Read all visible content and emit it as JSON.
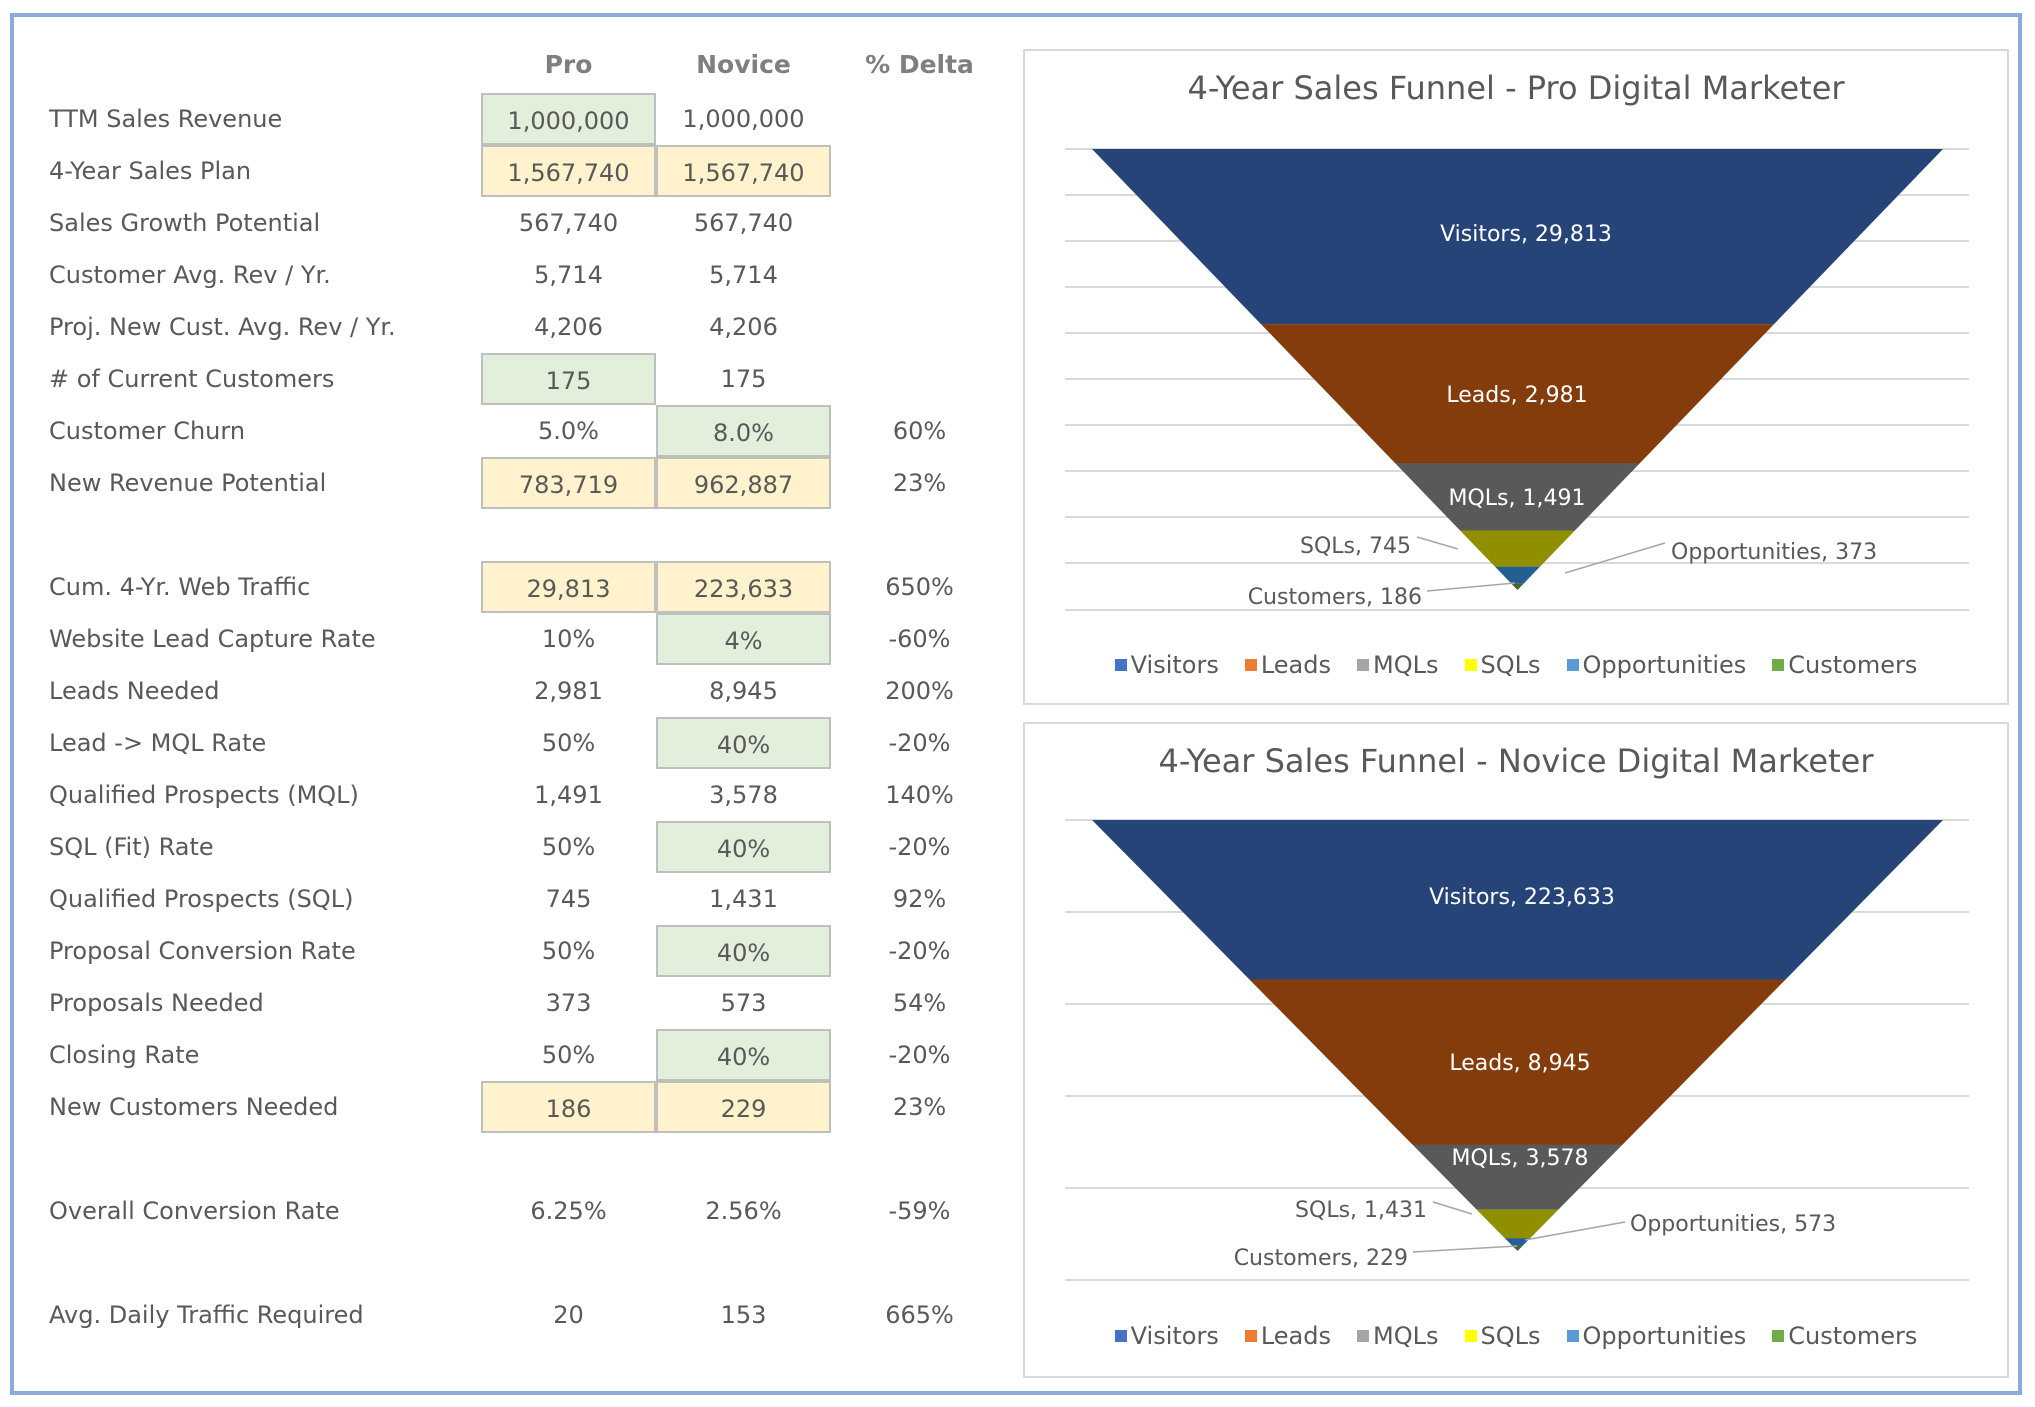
{
  "table": {
    "headers": {
      "pro": "Pro",
      "novice": "Novice",
      "delta": "% Delta"
    },
    "sections": [
      [
        {
          "label": "TTM Sales Revenue",
          "pro": "1,000,000",
          "novice": "1,000,000",
          "delta": "",
          "pro_fill": "green",
          "novice_fill": ""
        },
        {
          "label": "4-Year Sales Plan",
          "pro": "1,567,740",
          "novice": "1,567,740",
          "delta": "",
          "pro_fill": "yellow",
          "novice_fill": "yellow"
        },
        {
          "label": "Sales Growth Potential",
          "pro": "567,740",
          "novice": "567,740",
          "delta": "",
          "pro_fill": "",
          "novice_fill": ""
        },
        {
          "label": "Customer Avg. Rev / Yr.",
          "pro": "5,714",
          "novice": "5,714",
          "delta": "",
          "pro_fill": "",
          "novice_fill": ""
        },
        {
          "label": "Proj. New Cust. Avg. Rev / Yr.",
          "pro": "4,206",
          "novice": "4,206",
          "delta": "",
          "pro_fill": "",
          "novice_fill": ""
        },
        {
          "label": "# of Current Customers",
          "pro": "175",
          "novice": "175",
          "delta": "",
          "pro_fill": "green",
          "novice_fill": ""
        },
        {
          "label": "Customer Churn",
          "pro": "5.0%",
          "novice": "8.0%",
          "delta": "60%",
          "pro_fill": "",
          "novice_fill": "green"
        },
        {
          "label": "New Revenue Potential",
          "pro": "783,719",
          "novice": "962,887",
          "delta": "23%",
          "pro_fill": "yellow",
          "novice_fill": "yellow"
        }
      ],
      [
        {
          "label": "Cum. 4-Yr. Web Traffic",
          "pro": "29,813",
          "novice": "223,633",
          "delta": "650%",
          "pro_fill": "yellow",
          "novice_fill": "yellow"
        },
        {
          "label": "Website Lead Capture Rate",
          "pro": "10%",
          "novice": "4%",
          "delta": "-60%",
          "pro_fill": "",
          "novice_fill": "green"
        },
        {
          "label": "Leads Needed",
          "pro": "2,981",
          "novice": "8,945",
          "delta": "200%",
          "pro_fill": "",
          "novice_fill": ""
        },
        {
          "label": "Lead -> MQL Rate",
          "pro": "50%",
          "novice": "40%",
          "delta": "-20%",
          "pro_fill": "",
          "novice_fill": "green"
        },
        {
          "label": "Qualified Prospects (MQL)",
          "pro": "1,491",
          "novice": "3,578",
          "delta": "140%",
          "pro_fill": "",
          "novice_fill": ""
        },
        {
          "label": "SQL (Fit) Rate",
          "pro": "50%",
          "novice": "40%",
          "delta": "-20%",
          "pro_fill": "",
          "novice_fill": "green"
        },
        {
          "label": "Qualified Prospects (SQL)",
          "pro": "745",
          "novice": "1,431",
          "delta": "92%",
          "pro_fill": "",
          "novice_fill": ""
        },
        {
          "label": "Proposal Conversion Rate",
          "pro": "50%",
          "novice": "40%",
          "delta": "-20%",
          "pro_fill": "",
          "novice_fill": "green"
        },
        {
          "label": "Proposals Needed",
          "pro": "373",
          "novice": "573",
          "delta": "54%",
          "pro_fill": "",
          "novice_fill": ""
        },
        {
          "label": "Closing Rate",
          "pro": "50%",
          "novice": "40%",
          "delta": "-20%",
          "pro_fill": "",
          "novice_fill": "green"
        },
        {
          "label": "New Customers Needed",
          "pro": "186",
          "novice": "229",
          "delta": "23%",
          "pro_fill": "yellow",
          "novice_fill": "yellow"
        }
      ],
      [
        {
          "label": "Overall Conversion Rate",
          "pro": "6.25%",
          "novice": "2.56%",
          "delta": "-59%",
          "pro_fill": "",
          "novice_fill": ""
        }
      ],
      [
        {
          "label": "Avg. Daily Traffic Required",
          "pro": "20",
          "novice": "153",
          "delta": "665%",
          "pro_fill": "",
          "novice_fill": ""
        }
      ]
    ],
    "fills": {
      "green": "#e2efda",
      "yellow": "#fff2cc"
    }
  },
  "chart_data": [
    {
      "type": "funnel",
      "title": "4-Year Sales Funnel - Pro Digital Marketer",
      "categories": [
        "Visitors",
        "Leads",
        "MQLs",
        "SQLs",
        "Opportunities",
        "Customers"
      ],
      "values": [
        29813,
        2981,
        1491,
        745,
        373,
        186
      ],
      "data_labels": [
        "Visitors, 29,813",
        "Leads, 2,981",
        "MQLs, 1,491",
        "SQLs, 745",
        "Opportunities, 373",
        "Customers, 186"
      ],
      "grid": true,
      "legend": "bottom"
    },
    {
      "type": "funnel",
      "title": "4-Year Sales Funnel - Novice Digital Marketer",
      "categories": [
        "Visitors",
        "Leads",
        "MQLs",
        "SQLs",
        "Opportunities",
        "Customers"
      ],
      "values": [
        223633,
        8945,
        3578,
        1431,
        573,
        229
      ],
      "data_labels": [
        "Visitors, 223,633",
        "Leads, 8,945",
        "MQLs, 3,578",
        "SQLs, 1,431",
        "Opportunities, 573",
        "Customers, 229"
      ],
      "grid": true,
      "legend": "bottom"
    }
  ],
  "colors": {
    "band": [
      "#264478",
      "#843c0c",
      "#595959",
      "#8f8f00",
      "#255e91",
      "#43682b"
    ],
    "legend": [
      "#4472c4",
      "#ed7d31",
      "#a5a5a5",
      "#ffff00",
      "#5b9bd5",
      "#70ad47"
    ]
  }
}
